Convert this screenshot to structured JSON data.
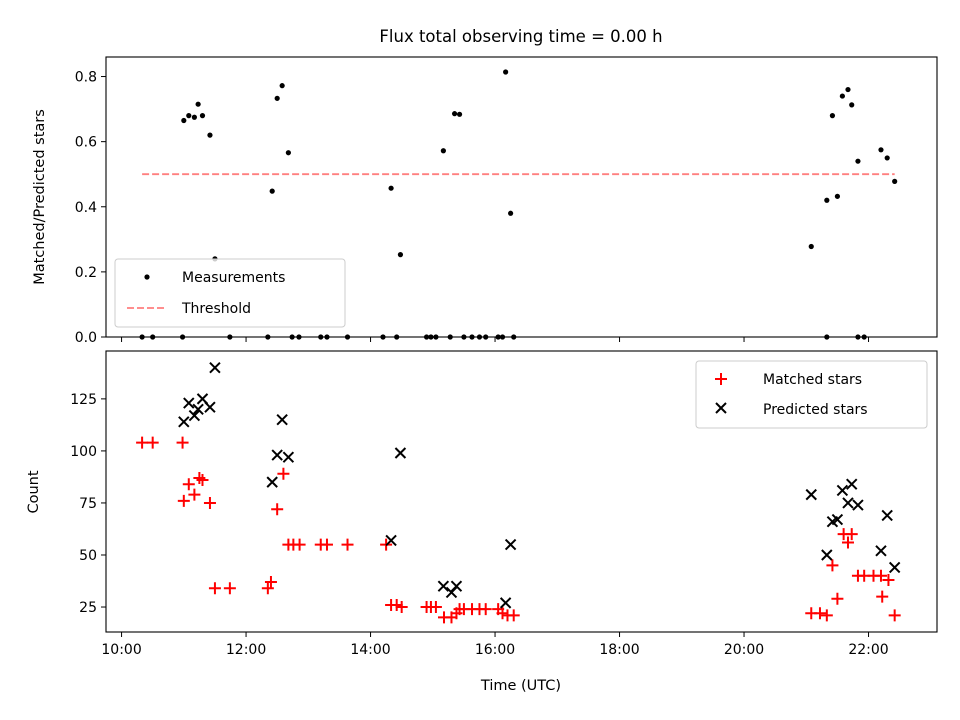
{
  "chart_data": [
    {
      "type": "scatter",
      "title": "Flux total observing time = 0.00 h",
      "ylabel": "Matched/Predicted stars",
      "xlabel": "",
      "xlim": [
        9.75,
        23.1
      ],
      "ylim": [
        0,
        0.86
      ],
      "yticks": [
        0.0,
        0.2,
        0.4,
        0.6,
        0.8
      ],
      "ytick_labels": [
        "0.0",
        "0.2",
        "0.4",
        "0.6",
        "0.8"
      ],
      "legend": {
        "position": "lower-left",
        "entries": [
          "Measurements",
          "Threshold"
        ]
      },
      "grid": false,
      "series": [
        {
          "name": "Measurements",
          "marker": "dot",
          "color": "#000000",
          "points": [
            [
              10.33,
              0
            ],
            [
              10.5,
              0
            ],
            [
              10.98,
              0
            ],
            [
              11.74,
              0
            ],
            [
              12.35,
              0
            ],
            [
              12.74,
              0
            ],
            [
              12.85,
              0
            ],
            [
              13.2,
              0
            ],
            [
              13.3,
              0
            ],
            [
              13.63,
              0
            ],
            [
              14.2,
              0
            ],
            [
              14.42,
              0
            ],
            [
              14.9,
              0
            ],
            [
              14.97,
              0
            ],
            [
              15.05,
              0
            ],
            [
              15.28,
              0
            ],
            [
              15.5,
              0
            ],
            [
              15.63,
              0
            ],
            [
              15.75,
              0
            ],
            [
              15.85,
              0
            ],
            [
              16.05,
              0
            ],
            [
              16.12,
              0
            ],
            [
              16.3,
              0
            ],
            [
              21.33,
              0
            ],
            [
              21.83,
              0
            ],
            [
              21.93,
              0
            ],
            [
              11.0,
              0.665
            ],
            [
              11.08,
              0.68
            ],
            [
              11.17,
              0.675
            ],
            [
              11.23,
              0.715
            ],
            [
              11.3,
              0.68
            ],
            [
              11.42,
              0.62
            ],
            [
              11.5,
              0.24
            ],
            [
              12.42,
              0.448
            ],
            [
              12.5,
              0.733
            ],
            [
              12.58,
              0.772
            ],
            [
              12.68,
              0.566
            ],
            [
              14.33,
              0.457
            ],
            [
              14.48,
              0.253
            ],
            [
              15.17,
              0.572
            ],
            [
              15.35,
              0.686
            ],
            [
              15.43,
              0.684
            ],
            [
              16.17,
              0.814
            ],
            [
              16.25,
              0.38
            ],
            [
              21.08,
              0.278
            ],
            [
              21.33,
              0.42
            ],
            [
              21.42,
              0.68
            ],
            [
              21.5,
              0.432
            ],
            [
              21.58,
              0.74
            ],
            [
              21.67,
              0.76
            ],
            [
              21.73,
              0.713
            ],
            [
              21.83,
              0.54
            ],
            [
              22.2,
              0.575
            ],
            [
              22.3,
              0.55
            ],
            [
              22.42,
              0.478
            ]
          ]
        },
        {
          "name": "Threshold",
          "marker": "dashed-line",
          "color": "#ff7f7f",
          "points": [
            [
              10.33,
              0.5
            ],
            [
              22.42,
              0.5
            ]
          ]
        }
      ]
    },
    {
      "type": "scatter",
      "title": "",
      "xlabel": "Time (UTC)",
      "ylabel": "Count",
      "xlim": [
        9.75,
        23.1
      ],
      "ylim": [
        13,
        148
      ],
      "xticks": [
        10,
        12,
        14,
        16,
        18,
        20,
        22
      ],
      "xtick_labels": [
        "10:00",
        "12:00",
        "14:00",
        "16:00",
        "18:00",
        "20:00",
        "22:00"
      ],
      "yticks": [
        25,
        50,
        75,
        100,
        125
      ],
      "ytick_labels": [
        "25",
        "50",
        "75",
        "100",
        "125"
      ],
      "legend": {
        "position": "top-right",
        "entries": [
          "Matched stars",
          "Predicted stars"
        ]
      },
      "grid": false,
      "series": [
        {
          "name": "Matched stars",
          "marker": "plus",
          "color": "#ff0000",
          "points": [
            [
              10.33,
              104
            ],
            [
              10.5,
              104
            ],
            [
              10.98,
              104
            ],
            [
              11.0,
              76
            ],
            [
              11.08,
              84
            ],
            [
              11.17,
              79
            ],
            [
              11.25,
              87
            ],
            [
              11.3,
              86
            ],
            [
              11.42,
              75
            ],
            [
              11.5,
              34
            ],
            [
              11.74,
              34
            ],
            [
              12.35,
              34
            ],
            [
              12.4,
              37
            ],
            [
              12.5,
              72
            ],
            [
              12.6,
              89
            ],
            [
              12.68,
              55
            ],
            [
              12.76,
              55
            ],
            [
              12.86,
              55
            ],
            [
              13.2,
              55
            ],
            [
              13.3,
              55
            ],
            [
              13.63,
              55
            ],
            [
              14.25,
              55
            ],
            [
              14.33,
              26
            ],
            [
              14.42,
              26
            ],
            [
              14.5,
              25
            ],
            [
              14.9,
              25
            ],
            [
              14.97,
              25
            ],
            [
              15.05,
              25
            ],
            [
              15.18,
              20
            ],
            [
              15.3,
              20
            ],
            [
              15.38,
              22
            ],
            [
              15.43,
              24
            ],
            [
              15.5,
              24
            ],
            [
              15.63,
              24
            ],
            [
              15.75,
              24
            ],
            [
              15.85,
              24
            ],
            [
              16.05,
              24
            ],
            [
              16.12,
              22
            ],
            [
              16.2,
              21
            ],
            [
              16.3,
              21
            ],
            [
              21.08,
              22
            ],
            [
              21.22,
              22
            ],
            [
              21.33,
              21
            ],
            [
              21.42,
              45
            ],
            [
              21.5,
              29
            ],
            [
              21.6,
              60
            ],
            [
              21.67,
              56
            ],
            [
              21.73,
              60
            ],
            [
              21.83,
              40
            ],
            [
              21.93,
              40
            ],
            [
              22.08,
              40
            ],
            [
              22.2,
              40
            ],
            [
              22.22,
              30
            ],
            [
              22.32,
              38
            ],
            [
              22.42,
              21
            ]
          ]
        },
        {
          "name": "Predicted stars",
          "marker": "x",
          "color": "#000000",
          "points": [
            [
              11.0,
              114
            ],
            [
              11.08,
              123
            ],
            [
              11.17,
              117
            ],
            [
              11.23,
              120
            ],
            [
              11.3,
              125
            ],
            [
              11.42,
              121
            ],
            [
              11.5,
              140
            ],
            [
              12.42,
              85
            ],
            [
              12.5,
              98
            ],
            [
              12.58,
              115
            ],
            [
              12.68,
              97
            ],
            [
              14.33,
              57
            ],
            [
              14.48,
              99
            ],
            [
              15.17,
              35
            ],
            [
              15.3,
              32
            ],
            [
              15.38,
              35
            ],
            [
              16.17,
              27
            ],
            [
              16.25,
              55
            ],
            [
              21.08,
              79
            ],
            [
              21.33,
              50
            ],
            [
              21.42,
              66
            ],
            [
              21.5,
              67
            ],
            [
              21.58,
              81
            ],
            [
              21.67,
              75
            ],
            [
              21.73,
              84
            ],
            [
              21.83,
              74
            ],
            [
              22.2,
              52
            ],
            [
              22.3,
              69
            ],
            [
              22.42,
              44
            ]
          ]
        }
      ]
    }
  ]
}
